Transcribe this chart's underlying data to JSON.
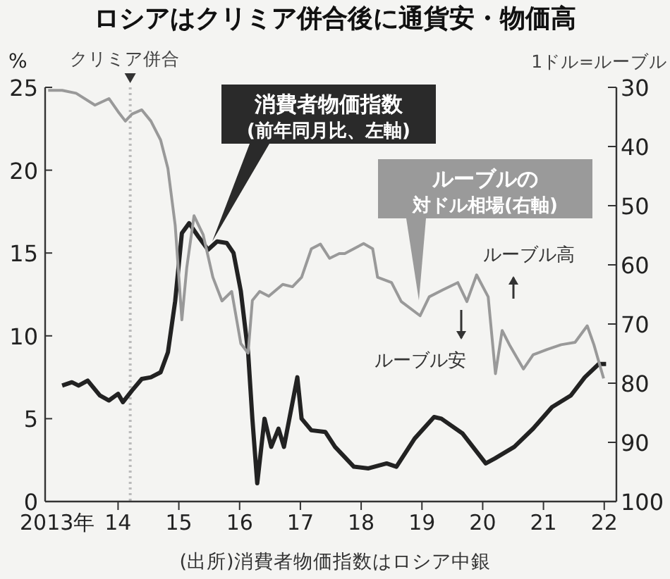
{
  "chart_data": {
    "type": "line",
    "title": "ロシアはクリミア併合後に通貨安・物価高",
    "ylabel": "%",
    "y2label": "1ドル=ルーブル",
    "xlim": [
      2012.8,
      2022.2
    ],
    "xticks": [
      {
        "value": 2013,
        "label": "2013年"
      },
      {
        "value": 2014,
        "label": "14"
      },
      {
        "value": 2015,
        "label": "15"
      },
      {
        "value": 2016,
        "label": "16"
      },
      {
        "value": 2017,
        "label": "17"
      },
      {
        "value": 2018,
        "label": "18"
      },
      {
        "value": 2019,
        "label": "19"
      },
      {
        "value": 2020,
        "label": "20"
      },
      {
        "value": 2021,
        "label": "21"
      },
      {
        "value": 2022,
        "label": "22"
      }
    ],
    "ylim": [
      0,
      25
    ],
    "yticks": [
      0,
      5,
      10,
      15,
      20,
      25
    ],
    "y2lim": [
      100,
      30
    ],
    "y2ticks": [
      30,
      40,
      50,
      60,
      70,
      80,
      90,
      100
    ],
    "grid": false,
    "legend": false,
    "marker": "none",
    "line_style": "solid",
    "ref_lines": [
      {
        "axis": "x",
        "value": 2014.2,
        "label": "クリミア併合",
        "color": "#bbbbbb",
        "line_style": "dotted"
      }
    ],
    "annotations": [
      "ルーブル高",
      "ルーブル安",
      "(出所)消費者物価指数はロシア中銀"
    ],
    "series": [
      {
        "name": "消費者物価指数(前年同月比、左軸)",
        "color": "#222222",
        "x": [
          2013.08,
          2013.24,
          2013.35,
          2013.5,
          2013.7,
          2013.85,
          2014.0,
          2014.08,
          2014.23,
          2014.39,
          2014.54,
          2014.7,
          2014.82,
          2014.94,
          2015.05,
          2015.17,
          2015.32,
          2015.48,
          2015.63,
          2015.79,
          2015.9,
          2016.02,
          2016.14,
          2016.21,
          2016.29,
          2016.41,
          2016.52,
          2016.64,
          2016.73,
          2016.95,
          2017.02,
          2017.18,
          2017.41,
          2017.57,
          2017.88,
          2018.12,
          2018.42,
          2018.58,
          2018.88,
          2019.2,
          2019.32,
          2019.67,
          2020.05,
          2020.2,
          2020.52,
          2020.83,
          2021.14,
          2021.45,
          2021.68,
          2021.91,
          2022.03
        ],
        "values": [
          7.0,
          7.2,
          7.0,
          7.3,
          6.4,
          6.1,
          6.5,
          6.0,
          6.7,
          7.4,
          7.5,
          7.8,
          9.0,
          12.1,
          16.2,
          16.8,
          16.0,
          15.2,
          15.7,
          15.6,
          15.0,
          12.7,
          9.0,
          5.0,
          1.1,
          5.0,
          3.3,
          4.4,
          3.3,
          7.5,
          5.0,
          4.3,
          4.2,
          3.3,
          2.1,
          2.0,
          2.3,
          2.1,
          3.8,
          5.1,
          5.0,
          4.1,
          2.3,
          2.6,
          3.3,
          4.4,
          5.7,
          6.4,
          7.5,
          8.3,
          8.3
        ]
      },
      {
        "name": "ルーブルの対ドル相場(右軸)",
        "color": "#999999",
        "axis": "y2",
        "x": [
          2012.85,
          2013.08,
          2013.31,
          2013.62,
          2013.85,
          2014.0,
          2014.12,
          2014.23,
          2014.39,
          2014.54,
          2014.7,
          2014.82,
          2014.94,
          2015.05,
          2015.13,
          2015.25,
          2015.4,
          2015.56,
          2015.71,
          2015.87,
          2016.02,
          2016.14,
          2016.21,
          2016.33,
          2016.48,
          2016.71,
          2016.87,
          2017.02,
          2017.18,
          2017.33,
          2017.48,
          2017.64,
          2017.73,
          2018.04,
          2018.19,
          2018.27,
          2018.5,
          2018.66,
          2018.97,
          2019.12,
          2019.35,
          2019.59,
          2019.74,
          2019.9,
          2020.09,
          2020.21,
          2020.32,
          2020.44,
          2020.67,
          2020.83,
          2021.06,
          2021.29,
          2021.52,
          2021.72,
          2021.83,
          2021.99
        ],
        "values": [
          30.5,
          30.5,
          31.0,
          33.0,
          31.9,
          34.1,
          35.7,
          34.5,
          33.8,
          35.7,
          38.9,
          43.7,
          53.3,
          69.3,
          60.5,
          51.7,
          54.9,
          62.1,
          66.1,
          64.5,
          73.3,
          74.9,
          66.0,
          64.5,
          65.3,
          63.3,
          63.7,
          62.1,
          57.3,
          56.5,
          58.9,
          58.1,
          58.1,
          56.4,
          57.3,
          62.1,
          63.0,
          66.2,
          68.6,
          65.4,
          64.2,
          63.0,
          66.2,
          61.7,
          65.4,
          78.4,
          71.1,
          73.5,
          77.6,
          75.2,
          74.3,
          73.5,
          73.1,
          70.3,
          73.5,
          79.2
        ]
      }
    ]
  }
}
